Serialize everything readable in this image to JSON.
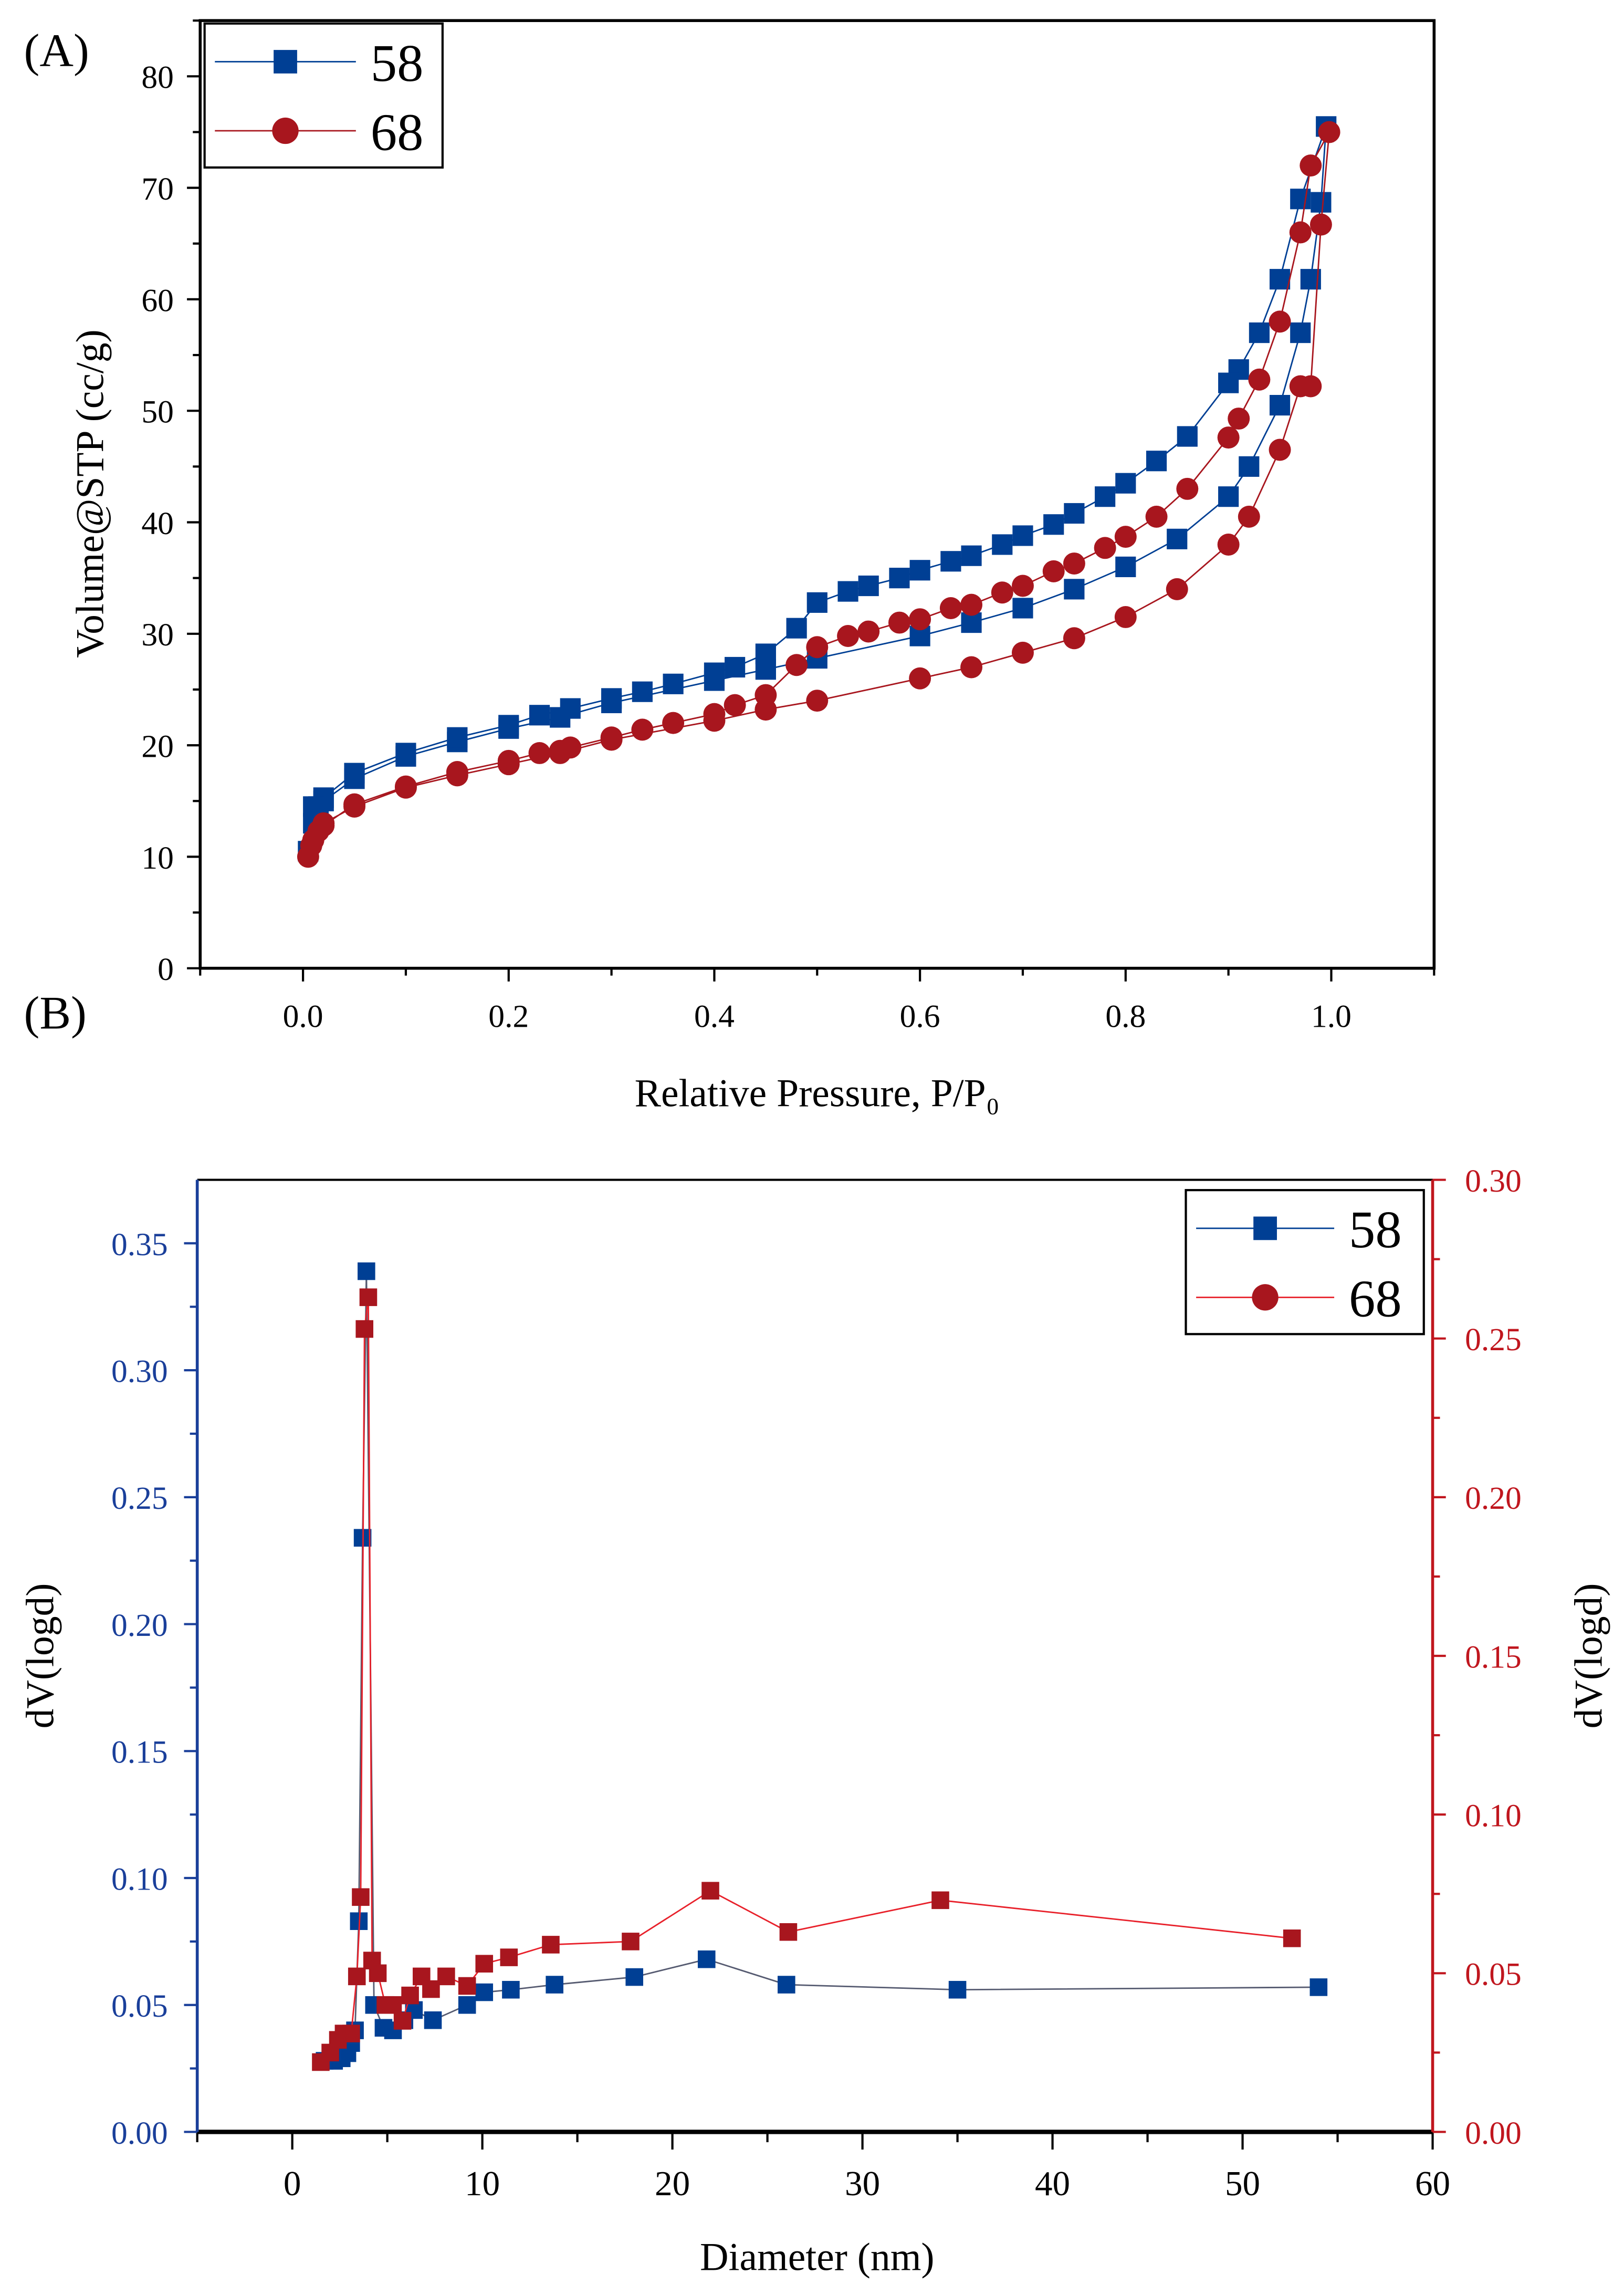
{
  "colors": {
    "s58": "#003f94",
    "s68": "#a8161e",
    "axis_left_b": "#1a3f9a",
    "axis_right_b": "#c0161e",
    "line58b": "#555a70"
  },
  "chart_data": [
    {
      "panel_label": "(A)",
      "type": "line",
      "xlabel": "Relative Pressure, P/P₀",
      "ylabel": "Volume@STP (cc/g)",
      "xlim": [
        -0.1,
        1.1
      ],
      "ylim": [
        0,
        85
      ],
      "xticks": [
        0.0,
        0.2,
        0.4,
        0.6,
        0.8,
        1.0
      ],
      "xtick_labels": [
        "0.0",
        "0.2",
        "0.4",
        "0.6",
        "0.8",
        "1.0"
      ],
      "yticks": [
        0,
        10,
        20,
        30,
        40,
        50,
        60,
        70,
        80
      ],
      "ytick_labels": [
        "0",
        "10",
        "20",
        "30",
        "40",
        "50",
        "60",
        "70",
        "80"
      ],
      "legend_position": "top-left",
      "series": [
        {
          "name": "58",
          "marker": "square",
          "x": [
            0.005,
            0.01,
            0.015,
            0.02,
            0.05,
            0.1,
            0.15,
            0.2,
            0.25,
            0.3,
            0.4,
            0.45,
            0.5,
            0.6,
            0.65,
            0.7,
            0.75,
            0.8,
            0.85,
            0.9,
            0.92,
            0.95,
            0.97,
            0.98,
            0.99,
            0.995,
            0.97,
            0.95,
            0.93,
            0.91,
            0.9,
            0.86,
            0.83,
            0.8,
            0.78,
            0.75,
            0.73,
            0.7,
            0.68,
            0.65,
            0.63,
            0.6,
            0.58,
            0.55,
            0.53,
            0.5,
            0.48,
            0.45,
            0.42,
            0.4,
            0.36,
            0.33,
            0.3,
            0.26,
            0.23,
            0.2,
            0.15,
            0.1,
            0.05,
            0.02,
            0.01
          ],
          "y": [
            10.5,
            13,
            14.5,
            15,
            17,
            19,
            20.3,
            21.5,
            22.5,
            23.8,
            25.8,
            26.8,
            27.8,
            29.8,
            31,
            32.3,
            34,
            36,
            38.5,
            42.3,
            45,
            50.5,
            57,
            61.8,
            68.7,
            75.5,
            69,
            61.8,
            57,
            53.7,
            52.5,
            47.7,
            45.5,
            43.5,
            42.3,
            40.8,
            39.8,
            38.8,
            38,
            37,
            36.5,
            35.7,
            35,
            34.3,
            33.8,
            32.8,
            30.5,
            28.2,
            27,
            26.5,
            25.5,
            24.8,
            24.2,
            23.3,
            22.7,
            21.8,
            20.7,
            19.3,
            17.5,
            15.3,
            14.5
          ]
        },
        {
          "name": "68",
          "marker": "circle",
          "x": [
            0.005,
            0.008,
            0.01,
            0.015,
            0.02,
            0.05,
            0.1,
            0.15,
            0.2,
            0.25,
            0.3,
            0.4,
            0.45,
            0.5,
            0.6,
            0.65,
            0.7,
            0.75,
            0.8,
            0.85,
            0.9,
            0.92,
            0.95,
            0.97,
            0.98,
            0.99,
            0.998,
            0.98,
            0.97,
            0.95,
            0.93,
            0.91,
            0.9,
            0.86,
            0.83,
            0.8,
            0.78,
            0.75,
            0.73,
            0.7,
            0.68,
            0.65,
            0.63,
            0.6,
            0.58,
            0.55,
            0.53,
            0.5,
            0.48,
            0.45,
            0.42,
            0.4,
            0.36,
            0.33,
            0.3,
            0.26,
            0.25,
            0.23,
            0.2,
            0.15,
            0.1,
            0.05,
            0.02
          ],
          "y": [
            10,
            11,
            11.5,
            12.3,
            13,
            14.5,
            16.2,
            17.3,
            18.3,
            19.3,
            20.5,
            22.2,
            23.2,
            24,
            26,
            27,
            28.3,
            29.6,
            31.5,
            34,
            38,
            40.5,
            46.5,
            52.2,
            52.2,
            66.7,
            75,
            72,
            66,
            58,
            52.8,
            49.3,
            47.6,
            43,
            40.5,
            38.7,
            37.7,
            36.3,
            35.6,
            34.3,
            33.7,
            32.6,
            32.3,
            31.3,
            31,
            30.2,
            29.8,
            28.8,
            27.2,
            24.5,
            23.6,
            22.8,
            22,
            21.4,
            20.7,
            19.8,
            19.5,
            19.3,
            18.6,
            17.6,
            16.3,
            14.7,
            12.8
          ]
        }
      ]
    },
    {
      "panel_label": "(B)",
      "type": "line",
      "xlabel": "Diameter (nm)",
      "ylabel": "dV(logd)",
      "ylabel_right": "dV(logd)",
      "xlim": [
        -5,
        60
      ],
      "ylim": [
        0,
        0.375
      ],
      "ylim_right": [
        0,
        0.3
      ],
      "xticks": [
        0,
        10,
        20,
        30,
        40,
        50,
        60
      ],
      "xtick_labels": [
        "0",
        "10",
        "20",
        "30",
        "40",
        "50",
        "60"
      ],
      "yticks": [
        0,
        0.05,
        0.1,
        0.15,
        0.2,
        0.25,
        0.3,
        0.35
      ],
      "ytick_labels": [
        "0.00",
        "0.05",
        "0.10",
        "0.15",
        "0.20",
        "0.25",
        "0.30",
        "0.35"
      ],
      "yticks_right": [
        0,
        0.05,
        0.1,
        0.15,
        0.2,
        0.25,
        0.3
      ],
      "ytick_labels_right": [
        "0.00",
        "0.05",
        "0.10",
        "0.15",
        "0.20",
        "0.25",
        "0.30"
      ],
      "legend_position": "top-right",
      "series": [
        {
          "name": "58",
          "marker": "square",
          "axis": "left",
          "x": [
            1.7,
            2.2,
            2.6,
            2.9,
            3.1,
            3.3,
            3.5,
            3.7,
            3.9,
            4.3,
            4.8,
            5.3,
            5.9,
            6.4,
            7.4,
            9.2,
            10.1,
            11.5,
            13.8,
            18,
            21.8,
            26,
            35,
            54
          ],
          "y": [
            0.028,
            0.028,
            0.029,
            0.031,
            0.035,
            0.04,
            0.083,
            0.234,
            0.339,
            0.05,
            0.041,
            0.04,
            0.044,
            0.048,
            0.044,
            0.05,
            0.055,
            0.056,
            0.058,
            0.061,
            0.068,
            0.058,
            0.056,
            0.057
          ]
        },
        {
          "name": "68",
          "marker": "square",
          "axis": "right",
          "x": [
            1.5,
            2.0,
            2.4,
            2.7,
            3.1,
            3.4,
            3.6,
            3.8,
            4.0,
            4.2,
            4.5,
            4.9,
            5.3,
            5.8,
            6.2,
            6.8,
            7.3,
            8.1,
            9.2,
            10.1,
            11.4,
            13.6,
            17.8,
            22,
            26.1,
            34.1,
            52.6
          ],
          "y": [
            0.022,
            0.025,
            0.029,
            0.031,
            0.031,
            0.049,
            0.074,
            0.253,
            0.263,
            0.054,
            0.05,
            0.04,
            0.04,
            0.035,
            0.043,
            0.049,
            0.045,
            0.049,
            0.046,
            0.053,
            0.055,
            0.059,
            0.06,
            0.076,
            0.063,
            0.073,
            0.061
          ]
        }
      ]
    }
  ]
}
